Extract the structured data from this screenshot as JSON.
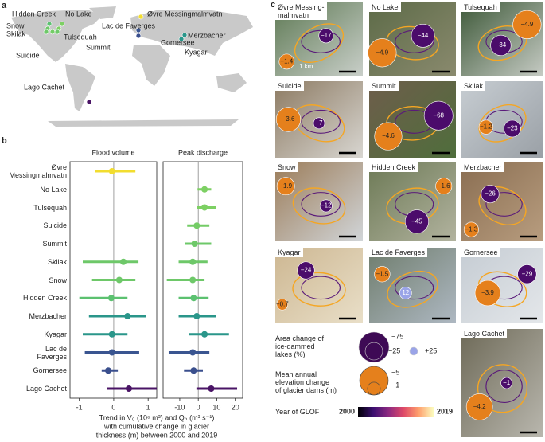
{
  "panel_labels": [
    "a",
    "b",
    "c"
  ],
  "map": {
    "lakes": [
      {
        "name": "Hidden Creek",
        "color": "#5cc170"
      },
      {
        "name": "No Lake",
        "color": "#7dd063"
      },
      {
        "name": "Øvre Messingmalmvatn",
        "color": "#f2dd2f"
      },
      {
        "name": "Snow",
        "color": "#6ec869"
      },
      {
        "name": "Skilak",
        "color": "#6ec869"
      },
      {
        "name": "Tulsequah",
        "color": "#7dd063"
      },
      {
        "name": "Lac de Faverges",
        "color": "#3a5590"
      },
      {
        "name": "Suicide",
        "color": "#74cc66"
      },
      {
        "name": "Summit",
        "color": "#6ec869"
      },
      {
        "name": "Merzbacher",
        "color": "#2a968a"
      },
      {
        "name": "Gornersee",
        "color": "#3a4f8d"
      },
      {
        "name": "Kyagar",
        "color": "#2a968a"
      },
      {
        "name": "Lago Cachet",
        "color": "#4a1466"
      }
    ]
  },
  "chart_data": [
    {
      "type": "dot",
      "title": "Flood volume",
      "categories": [
        "Øvre\nMessingmalmvatn",
        "No Lake",
        "Tulsequah",
        "Suicide",
        "Summit",
        "Skilak",
        "Snow",
        "Hidden Creek",
        "Merzbacher",
        "Kyagar",
        "Lac de\nFaverges",
        "Gornersee",
        "Lago Cachet"
      ],
      "values": [
        -0.05,
        null,
        null,
        null,
        null,
        0.28,
        0.16,
        -0.07,
        0.4,
        -0.05,
        -0.05,
        -0.16,
        0.44
      ],
      "low": [
        -0.53,
        null,
        null,
        null,
        null,
        -0.9,
        -0.63,
        -1.0,
        -0.72,
        -0.9,
        -0.84,
        -0.35,
        -0.19
      ],
      "high": [
        0.63,
        null,
        null,
        null,
        null,
        0.72,
        0.63,
        0.4,
        0.93,
        0.4,
        0.74,
        0.12,
        1.25
      ],
      "colors": [
        "#f2dd2f",
        "#7dd063",
        "#7dd063",
        "#74cc66",
        "#6ec869",
        "#6ec869",
        "#6ec869",
        "#5cc170",
        "#2a968a",
        "#2a968a",
        "#3a5590",
        "#3a4f8d",
        "#4a1466"
      ],
      "xlim": [
        -1.27,
        1.25
      ],
      "xticks": [
        -1,
        0,
        1
      ]
    },
    {
      "type": "dot",
      "title": "Peak discharge",
      "values": [
        null,
        3.4,
        3.4,
        -0.8,
        -2,
        -3,
        -3,
        -2.5,
        -0.8,
        3.4,
        -3,
        -2.5,
        7
      ],
      "low": [
        null,
        -0.4,
        -0.8,
        -6,
        -7,
        -10.6,
        -17,
        -10.6,
        -10.6,
        -5,
        -16,
        -7.7,
        -1
      ],
      "high": [
        null,
        7,
        9.4,
        6,
        7,
        5,
        3.4,
        5.6,
        9.4,
        16.6,
        6,
        2.5,
        21
      ],
      "colors": [
        "#f2dd2f",
        "#7dd063",
        "#7dd063",
        "#74cc66",
        "#6ec869",
        "#6ec869",
        "#6ec869",
        "#5cc170",
        "#2a968a",
        "#2a968a",
        "#3a5590",
        "#3a4f8d",
        "#4a1466"
      ],
      "xlim": [
        -19,
        24
      ],
      "xticks": [
        -10,
        0,
        10,
        20
      ]
    }
  ],
  "panel_b_xlabel": [
    "Trend in V₀ (10⁶ m³) and Qₚ (m³ s⁻¹)",
    "with cumulative change in glacier",
    "thickness (m) between 2000 and 2019"
  ],
  "tiles": [
    {
      "name": "Øvre Messing-\nmalmvatn",
      "area": {
        "value": -17,
        "label": "−17"
      },
      "elevation": {
        "value": -1.4,
        "label": "−1.4"
      },
      "scale": "1 km"
    },
    {
      "name": "No Lake",
      "area": {
        "value": -44,
        "label": "−44"
      },
      "elevation": {
        "value": -4.9,
        "label": "−4.9"
      }
    },
    {
      "name": "Tulsequah",
      "area": {
        "value": -34,
        "label": "−34"
      },
      "elevation": {
        "value": -4.9,
        "label": "−4.9"
      }
    },
    {
      "name": "Suicide",
      "area": {
        "value": -7,
        "label": "−7"
      },
      "elevation": {
        "value": -3.6,
        "label": "−3.6"
      }
    },
    {
      "name": "Summit",
      "area": {
        "value": -68,
        "label": "−68"
      },
      "elevation": {
        "value": -4.6,
        "label": "−4.6"
      }
    },
    {
      "name": "Skilak",
      "area": {
        "value": -23,
        "label": "−23"
      },
      "elevation": {
        "value": -1.2,
        "label": "−1.2"
      }
    },
    {
      "name": "Snow",
      "area": {
        "value": -12,
        "label": "−12"
      },
      "elevation": {
        "value": -1.9,
        "label": "−1.9"
      }
    },
    {
      "name": "Hidden Creek",
      "area": {
        "value": -45,
        "label": "−45"
      },
      "elevation": {
        "value": -1.6,
        "label": "−1.6"
      }
    },
    {
      "name": "Merzbacher",
      "area": {
        "value": -26,
        "label": "−26"
      },
      "elevation": {
        "value": -1.3,
        "label": "−1.3"
      }
    },
    {
      "name": "Kyagar",
      "area": {
        "value": -24,
        "label": "−24"
      },
      "elevation": {
        "value": -0.7,
        "label": "−0.7"
      }
    },
    {
      "name": "Lac de Faverges",
      "area": {
        "value": 12,
        "label": "12"
      },
      "elevation": {
        "value": -1.5,
        "label": "−1.5"
      }
    },
    {
      "name": "Gornersee",
      "area": {
        "value": -29,
        "label": "−29"
      },
      "elevation": {
        "value": -3.9,
        "label": "−3.9"
      }
    },
    {
      "name": "Lago Cachet",
      "area": {
        "value": -1,
        "label": "−1"
      },
      "elevation": {
        "value": -4.2,
        "label": "−4.2"
      }
    }
  ],
  "legend": {
    "area_title": "Area change of\nice-dammed\nlakes (%)",
    "area_sizes": [
      {
        "value": -75,
        "label": "−75"
      },
      {
        "value": -25,
        "label": "−25"
      },
      {
        "value": 25,
        "label": "+25"
      }
    ],
    "elevation_title": "Mean annual\nelevation change\nof glacier dams (m)",
    "elevation_sizes": [
      {
        "value": -5,
        "label": "−5"
      },
      {
        "value": -1,
        "label": "−1"
      }
    ],
    "colorbar_title": "Year of GLOF",
    "colorbar_range": [
      2000,
      2019
    ]
  }
}
